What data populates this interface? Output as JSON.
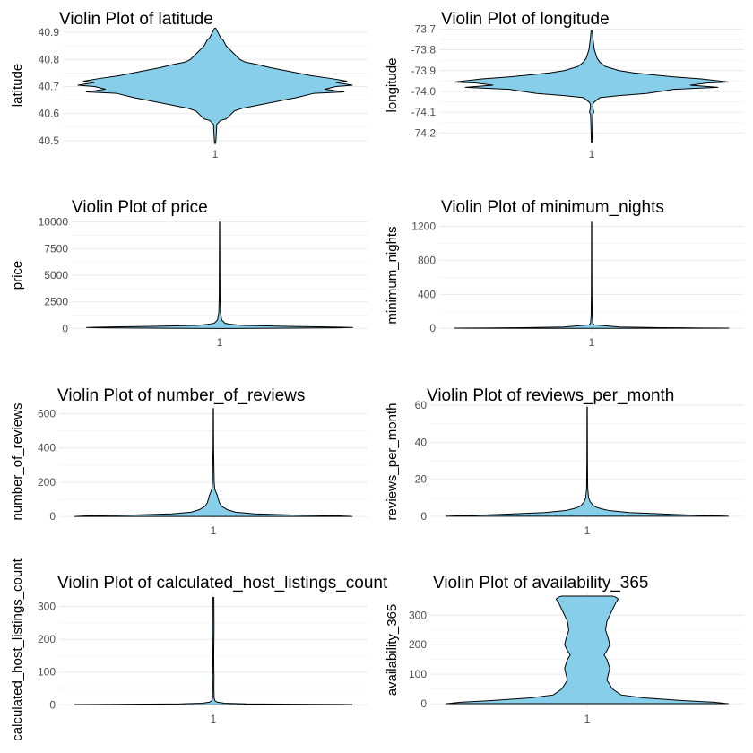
{
  "violin_color": "#87CEEB",
  "outline_color": "#000000",
  "chart_data": [
    {
      "type": "violin",
      "title": "Violin Plot of latitude",
      "ylabel": "latitude",
      "x_tick": "1",
      "ylim": [
        40.49,
        40.92
      ],
      "yticks": [
        40.5,
        40.6,
        40.7,
        40.8,
        40.9
      ],
      "ytick_labels": [
        "40.5",
        "40.6",
        "40.7",
        "40.8",
        "40.9"
      ],
      "max_half_width": 0.5,
      "density": [
        [
          40.49,
          0.002
        ],
        [
          40.52,
          0.004
        ],
        [
          40.56,
          0.006
        ],
        [
          40.575,
          0.02
        ],
        [
          40.58,
          0.04
        ],
        [
          40.59,
          0.05
        ],
        [
          40.6,
          0.06
        ],
        [
          40.61,
          0.07
        ],
        [
          40.62,
          0.1
        ],
        [
          40.64,
          0.2
        ],
        [
          40.66,
          0.3
        ],
        [
          40.675,
          0.36
        ],
        [
          40.68,
          0.47
        ],
        [
          40.69,
          0.4
        ],
        [
          40.7,
          0.44
        ],
        [
          40.705,
          0.5
        ],
        [
          40.715,
          0.44
        ],
        [
          40.72,
          0.48
        ],
        [
          40.73,
          0.42
        ],
        [
          40.74,
          0.35
        ],
        [
          40.75,
          0.3
        ],
        [
          40.76,
          0.25
        ],
        [
          40.77,
          0.2
        ],
        [
          40.78,
          0.16
        ],
        [
          40.79,
          0.11
        ],
        [
          40.8,
          0.09
        ],
        [
          40.81,
          0.08
        ],
        [
          40.82,
          0.07
        ],
        [
          40.83,
          0.06
        ],
        [
          40.84,
          0.05
        ],
        [
          40.85,
          0.04
        ],
        [
          40.86,
          0.035
        ],
        [
          40.87,
          0.03
        ],
        [
          40.88,
          0.02
        ],
        [
          40.89,
          0.015
        ],
        [
          40.9,
          0.01
        ],
        [
          40.915,
          0.002
        ]
      ]
    },
    {
      "type": "violin",
      "title": "Violin Plot of longitude",
      "ylabel": "longitude",
      "x_tick": "1",
      "ylim": [
        -74.25,
        -73.69
      ],
      "yticks": [
        -74.2,
        -74.1,
        -74.0,
        -73.9,
        -73.8,
        -73.7
      ],
      "ytick_labels": [
        "-74.2",
        "-74.1",
        "-74.0",
        "-73.9",
        "-73.8",
        "-73.7"
      ],
      "max_half_width": 0.5,
      "density": [
        [
          -74.245,
          0.001
        ],
        [
          -74.2,
          0.002
        ],
        [
          -74.15,
          0.003
        ],
        [
          -74.11,
          0.004
        ],
        [
          -74.1,
          0.008
        ],
        [
          -74.09,
          0.006
        ],
        [
          -74.07,
          0.004
        ],
        [
          -74.06,
          0.005
        ],
        [
          -74.05,
          0.01
        ],
        [
          -74.03,
          0.03
        ],
        [
          -74.02,
          0.1
        ],
        [
          -74.01,
          0.2
        ],
        [
          -74.0,
          0.25
        ],
        [
          -73.99,
          0.3
        ],
        [
          -73.98,
          0.46
        ],
        [
          -73.97,
          0.36
        ],
        [
          -73.96,
          0.42
        ],
        [
          -73.955,
          0.5
        ],
        [
          -73.94,
          0.4
        ],
        [
          -73.93,
          0.3
        ],
        [
          -73.92,
          0.22
        ],
        [
          -73.91,
          0.15
        ],
        [
          -73.9,
          0.1
        ],
        [
          -73.88,
          0.05
        ],
        [
          -73.86,
          0.03
        ],
        [
          -73.84,
          0.02
        ],
        [
          -73.82,
          0.015
        ],
        [
          -73.8,
          0.01
        ],
        [
          -73.78,
          0.008
        ],
        [
          -73.76,
          0.006
        ],
        [
          -73.74,
          0.004
        ],
        [
          -73.72,
          0.003
        ],
        [
          -73.71,
          0.002
        ]
      ]
    },
    {
      "type": "violin",
      "title": "Violin Plot of price",
      "ylabel": "price",
      "x_tick": "1",
      "ylim": [
        -300,
        10300
      ],
      "yticks": [
        0,
        2500,
        5000,
        7500,
        10000
      ],
      "ytick_labels": [
        "0",
        "2500",
        "5000",
        "7500",
        "10000"
      ],
      "max_half_width": 0.5,
      "density": [
        [
          0,
          0.001
        ],
        [
          30,
          0.2
        ],
        [
          70,
          0.45
        ],
        [
          100,
          0.5
        ],
        [
          150,
          0.4
        ],
        [
          200,
          0.25
        ],
        [
          300,
          0.08
        ],
        [
          400,
          0.04
        ],
        [
          500,
          0.02
        ],
        [
          800,
          0.008
        ],
        [
          1500,
          0.003
        ],
        [
          3000,
          0.0015
        ],
        [
          6000,
          0.001
        ],
        [
          10000,
          0.0005
        ]
      ]
    },
    {
      "type": "violin",
      "title": "Violin Plot of minimum_nights",
      "ylabel": "minimum_nights",
      "x_tick": "1",
      "ylim": [
        -40,
        1290
      ],
      "yticks": [
        0,
        400,
        800,
        1200
      ],
      "ytick_labels": [
        "0",
        "400",
        "800",
        "1200"
      ],
      "max_half_width": 0.5,
      "density": [
        [
          0,
          0.001
        ],
        [
          1,
          0.45
        ],
        [
          2,
          0.5
        ],
        [
          4,
          0.4
        ],
        [
          8,
          0.25
        ],
        [
          15,
          0.1
        ],
        [
          30,
          0.05
        ],
        [
          40,
          0.01
        ],
        [
          60,
          0.004
        ],
        [
          150,
          0.002
        ],
        [
          400,
          0.001
        ],
        [
          800,
          0.0007
        ],
        [
          1250,
          0.0005
        ]
      ]
    },
    {
      "type": "violin",
      "title": "Violin Plot of number_of_reviews",
      "ylabel": "number_of_reviews",
      "x_tick": "1",
      "ylim": [
        -20,
        660
      ],
      "yticks": [
        0,
        200,
        400,
        600
      ],
      "ytick_labels": [
        "0",
        "200",
        "400",
        "600"
      ],
      "max_half_width": 0.5,
      "density": [
        [
          0,
          0.5
        ],
        [
          4,
          0.45
        ],
        [
          8,
          0.3
        ],
        [
          15,
          0.15
        ],
        [
          25,
          0.08
        ],
        [
          40,
          0.05
        ],
        [
          60,
          0.03
        ],
        [
          80,
          0.022
        ],
        [
          100,
          0.018
        ],
        [
          120,
          0.015
        ],
        [
          140,
          0.01
        ],
        [
          160,
          0.005
        ],
        [
          200,
          0.003
        ],
        [
          300,
          0.002
        ],
        [
          400,
          0.001
        ],
        [
          630,
          0.0005
        ]
      ]
    },
    {
      "type": "violin",
      "title": "Violin Plot of reviews_per_month",
      "ylabel": "reviews_per_month",
      "x_tick": "1",
      "ylim": [
        -2,
        61
      ],
      "yticks": [
        0,
        20,
        40,
        60
      ],
      "ytick_labels": [
        "0",
        "20",
        "40",
        "60"
      ],
      "max_half_width": 0.5,
      "density": [
        [
          0,
          0.5
        ],
        [
          0.5,
          0.4
        ],
        [
          1,
          0.3
        ],
        [
          2,
          0.15
        ],
        [
          3,
          0.08
        ],
        [
          4,
          0.05
        ],
        [
          5,
          0.03
        ],
        [
          6,
          0.02
        ],
        [
          8,
          0.01
        ],
        [
          10,
          0.005
        ],
        [
          15,
          0.002
        ],
        [
          20,
          0.0015
        ],
        [
          30,
          0.001
        ],
        [
          59,
          0.0005
        ]
      ]
    },
    {
      "type": "violin",
      "title": "Violin Plot of calculated_host_listings_count",
      "ylabel": "calculated_host_listings_count",
      "x_tick": "1",
      "ylim": [
        -10,
        345
      ],
      "yticks": [
        0,
        100,
        200,
        300
      ],
      "ytick_labels": [
        "0",
        "100",
        "200",
        "300"
      ],
      "max_half_width": 0.5,
      "density": [
        [
          0,
          0.001
        ],
        [
          1,
          0.5
        ],
        [
          2,
          0.3
        ],
        [
          3,
          0.12
        ],
        [
          5,
          0.04
        ],
        [
          8,
          0.015
        ],
        [
          12,
          0.006
        ],
        [
          20,
          0.003
        ],
        [
          50,
          0.002
        ],
        [
          90,
          0.0025
        ],
        [
          100,
          0.002
        ],
        [
          150,
          0.0015
        ],
        [
          230,
          0.0025
        ],
        [
          327,
          0.002
        ]
      ]
    },
    {
      "type": "violin",
      "title": "Violin Plot of availability_365",
      "ylabel": "availability_365",
      "x_tick": "1",
      "ylim": [
        -15,
        380
      ],
      "yticks": [
        0,
        100,
        200,
        300
      ],
      "ytick_labels": [
        "0",
        "100",
        "200",
        "300"
      ],
      "max_half_width": 0.5,
      "density": [
        [
          0,
          0.5
        ],
        [
          5,
          0.45
        ],
        [
          10,
          0.35
        ],
        [
          20,
          0.2
        ],
        [
          30,
          0.12
        ],
        [
          50,
          0.09
        ],
        [
          80,
          0.07
        ],
        [
          100,
          0.075
        ],
        [
          120,
          0.08
        ],
        [
          150,
          0.07
        ],
        [
          165,
          0.06
        ],
        [
          180,
          0.07
        ],
        [
          200,
          0.08
        ],
        [
          220,
          0.075
        ],
        [
          250,
          0.065
        ],
        [
          280,
          0.07
        ],
        [
          300,
          0.08
        ],
        [
          320,
          0.09
        ],
        [
          340,
          0.1
        ],
        [
          355,
          0.11
        ],
        [
          362,
          0.1
        ],
        [
          365,
          0.09
        ]
      ]
    }
  ]
}
